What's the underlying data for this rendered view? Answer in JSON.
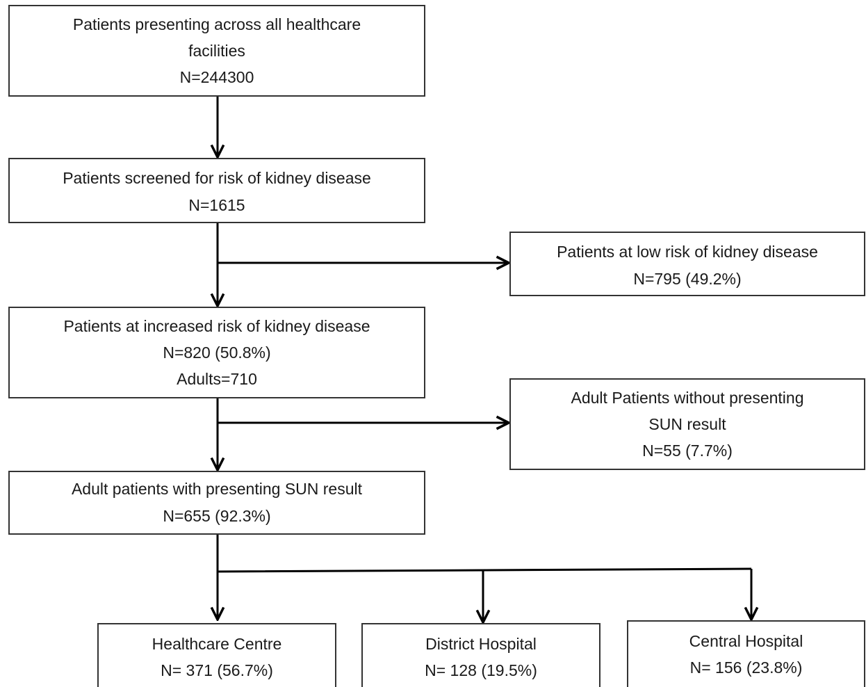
{
  "nodes": [
    {
      "lines": [
        "Patients presenting across all healthcare",
        "facilities",
        "N=244300"
      ]
    },
    {
      "lines": [
        "Patients screened for risk of kidney disease",
        "N=1615"
      ]
    },
    {
      "lines": [
        "Patients at low risk of kidney disease",
        "N=795 (49.2%)"
      ]
    },
    {
      "lines": [
        "Patients at increased risk of kidney disease",
        "N=820 (50.8%)",
        "Adults=710"
      ]
    },
    {
      "lines": [
        "Adult Patients without presenting",
        "SUN result",
        "N=55 (7.7%)"
      ]
    },
    {
      "lines": [
        "Adult patients with presenting SUN result",
        "N=655 (92.3%)"
      ]
    },
    {
      "lines": [
        "Healthcare Centre",
        "N= 371 (56.7%)"
      ]
    },
    {
      "lines": [
        "District Hospital",
        "N= 128 (19.5%)"
      ]
    },
    {
      "lines": [
        "Central Hospital",
        "N= 156 (23.8%)"
      ]
    }
  ]
}
